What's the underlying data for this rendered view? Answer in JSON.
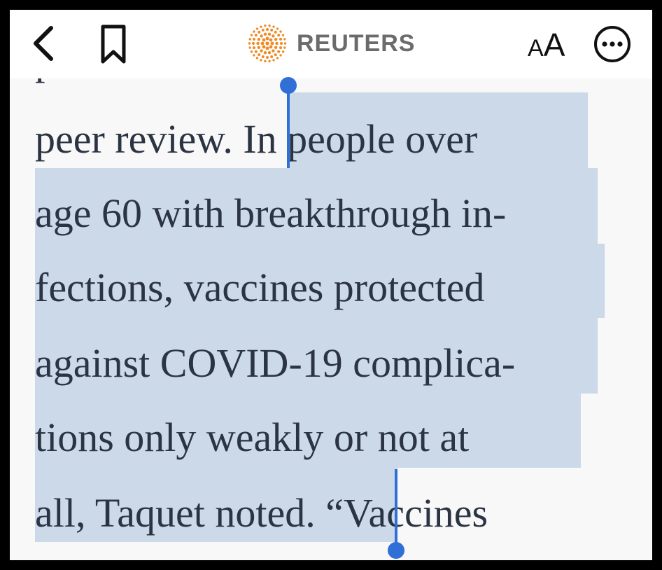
{
  "toolbar": {
    "brand": "REUTERS",
    "text_size_small": "A",
    "text_size_large": "A",
    "icons": {
      "back": "chevron-left-icon",
      "bookmark": "bookmark-icon",
      "logo": "reuters-dot-logo",
      "more": "ellipsis-circle-icon"
    },
    "logo_color": "#f08a24"
  },
  "article": {
    "partial_line": "p                               -",
    "lines": [
      {
        "before": "peer review. ",
        "selected": "In people over",
        "after": ""
      },
      {
        "before": "",
        "selected": "age 60 with breakthrough in-",
        "after": ""
      },
      {
        "before": "",
        "selected": "fections, vaccines protected",
        "after": ""
      },
      {
        "before": "",
        "selected": "against COVID-19 complica-",
        "after": ""
      },
      {
        "before": "",
        "selected": "tions only weakly or not at",
        "after": ""
      },
      {
        "before": "",
        "selected": "all, Taquet noted. ",
        "after": "“Vaccines"
      }
    ]
  },
  "selection": {
    "highlight_color": "#cbd9e8",
    "handle_color": "#2f6fd6"
  }
}
